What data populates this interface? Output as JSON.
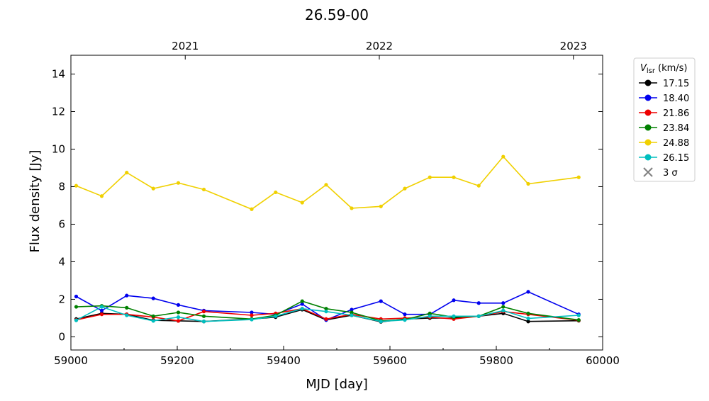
{
  "chart_data": {
    "type": "line",
    "title": "26.59-00",
    "xlabel": "MJD [day]",
    "ylabel": "Flux density [Jy]",
    "xlim": [
      59000,
      60000
    ],
    "ylim": [
      -0.7,
      15
    ],
    "x_ticks": [
      59000,
      59200,
      59400,
      59600,
      59800,
      60000
    ],
    "y_ticks": [
      0,
      2,
      4,
      6,
      8,
      10,
      12,
      14
    ],
    "top_axis": {
      "labels": [
        "2021",
        "2022",
        "2023"
      ],
      "mjd_positions": [
        59215,
        59580,
        59945
      ]
    },
    "legend": {
      "title_main": "V",
      "title_sub": "lsr",
      "title_unit": "(km/s)",
      "placement": "outside-right-top",
      "sigma_label": "3 σ"
    },
    "grid": false,
    "x": [
      59010,
      59058,
      59105,
      59155,
      59202,
      59250,
      59340,
      59385,
      59435,
      59480,
      59528,
      59583,
      59628,
      59675,
      59720,
      59767,
      59813,
      59860,
      59955
    ],
    "series": [
      {
        "name": "17.15",
        "color": "#000000",
        "values": [
          0.95,
          1.25,
          1.2,
          0.88,
          0.85,
          0.82,
          0.95,
          1.05,
          1.45,
          0.9,
          1.15,
          0.8,
          0.95,
          1.0,
          1.0,
          1.1,
          1.25,
          0.82,
          0.86
        ]
      },
      {
        "name": "18.40",
        "color": "#0000ee",
        "values": [
          2.15,
          1.4,
          2.2,
          2.05,
          1.7,
          1.4,
          1.3,
          1.2,
          1.75,
          0.9,
          1.45,
          1.9,
          1.2,
          1.2,
          1.95,
          1.8,
          1.8,
          2.4,
          1.2
        ]
      },
      {
        "name": "21.86",
        "color": "#ee0000",
        "values": [
          0.9,
          1.2,
          1.2,
          1.05,
          0.85,
          1.35,
          1.15,
          1.25,
          1.5,
          0.95,
          1.2,
          0.95,
          1.0,
          1.05,
          0.95,
          1.1,
          1.35,
          1.2,
          0.88
        ]
      },
      {
        "name": "23.84",
        "color": "#008000",
        "values": [
          1.6,
          1.65,
          1.55,
          1.1,
          1.3,
          1.1,
          0.95,
          1.15,
          1.9,
          1.5,
          1.3,
          0.85,
          0.92,
          1.25,
          1.05,
          1.1,
          1.6,
          1.25,
          0.9
        ]
      },
      {
        "name": "24.88",
        "color": "#f0d000",
        "values": [
          8.05,
          7.5,
          8.75,
          7.9,
          8.2,
          7.85,
          6.8,
          7.7,
          7.15,
          8.1,
          6.85,
          6.95,
          7.9,
          8.5,
          8.5,
          8.05,
          9.6,
          8.15,
          8.5
        ]
      },
      {
        "name": "26.15",
        "color": "#00bfbf",
        "values": [
          0.88,
          1.6,
          1.15,
          0.85,
          1.05,
          0.82,
          0.92,
          1.1,
          1.5,
          1.35,
          1.15,
          0.82,
          0.9,
          1.1,
          1.1,
          1.1,
          1.4,
          0.98,
          1.15
        ]
      }
    ]
  }
}
